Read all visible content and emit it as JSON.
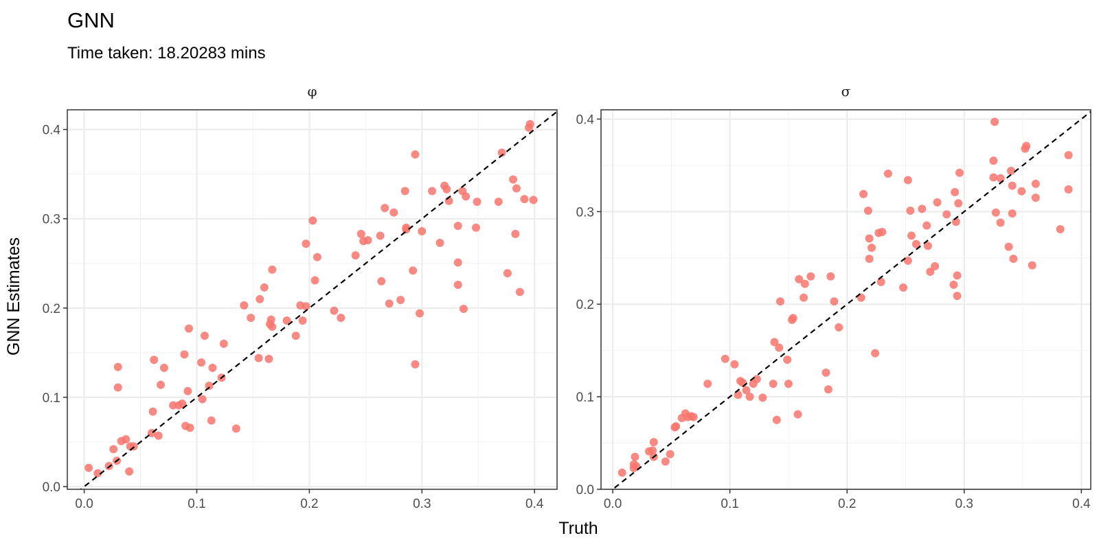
{
  "title": "GNN",
  "subtitle": "Time taken: 18.20283 mins",
  "colors": {
    "point": "#F8766D",
    "refline": "#000000"
  },
  "chart_data": [
    {
      "type": "scatter",
      "panel": "φ",
      "xlabel": "Truth",
      "ylabel": "GNN Estimates",
      "xlim": [
        -0.015,
        0.42
      ],
      "ylim": [
        -0.003,
        0.422
      ],
      "xticks": [
        0.0,
        0.1,
        0.2,
        0.3,
        0.4
      ],
      "xtick_labels": [
        "0.0",
        "0.1",
        "0.2",
        "0.3",
        "0.4"
      ],
      "yticks": [
        0.0,
        0.1,
        0.2,
        0.3,
        0.4
      ],
      "ytick_labels": [
        "0.0",
        "0.1",
        "0.2",
        "0.3",
        "0.4"
      ],
      "reference_line": "y = x",
      "points": [
        [
          0.004,
          0.021
        ],
        [
          0.012,
          0.015
        ],
        [
          0.022,
          0.023
        ],
        [
          0.026,
          0.042
        ],
        [
          0.029,
          0.029
        ],
        [
          0.03,
          0.111
        ],
        [
          0.03,
          0.134
        ],
        [
          0.033,
          0.051
        ],
        [
          0.037,
          0.053
        ],
        [
          0.04,
          0.017
        ],
        [
          0.041,
          0.045
        ],
        [
          0.044,
          0.045
        ],
        [
          0.06,
          0.06
        ],
        [
          0.061,
          0.084
        ],
        [
          0.062,
          0.142
        ],
        [
          0.066,
          0.057
        ],
        [
          0.068,
          0.114
        ],
        [
          0.071,
          0.133
        ],
        [
          0.079,
          0.091
        ],
        [
          0.084,
          0.091
        ],
        [
          0.087,
          0.093
        ],
        [
          0.089,
          0.148
        ],
        [
          0.09,
          0.068
        ],
        [
          0.092,
          0.107
        ],
        [
          0.093,
          0.177
        ],
        [
          0.094,
          0.066
        ],
        [
          0.104,
          0.139
        ],
        [
          0.105,
          0.098
        ],
        [
          0.107,
          0.169
        ],
        [
          0.111,
          0.113
        ],
        [
          0.113,
          0.074
        ],
        [
          0.114,
          0.133
        ],
        [
          0.122,
          0.122
        ],
        [
          0.124,
          0.16
        ],
        [
          0.135,
          0.065
        ],
        [
          0.142,
          0.203
        ],
        [
          0.148,
          0.189
        ],
        [
          0.155,
          0.144
        ],
        [
          0.156,
          0.21
        ],
        [
          0.16,
          0.223
        ],
        [
          0.164,
          0.143
        ],
        [
          0.165,
          0.182
        ],
        [
          0.166,
          0.187
        ],
        [
          0.167,
          0.243
        ],
        [
          0.167,
          0.179
        ],
        [
          0.18,
          0.186
        ],
        [
          0.188,
          0.169
        ],
        [
          0.192,
          0.203
        ],
        [
          0.194,
          0.186
        ],
        [
          0.197,
          0.272
        ],
        [
          0.197,
          0.202
        ],
        [
          0.203,
          0.298
        ],
        [
          0.205,
          0.231
        ],
        [
          0.207,
          0.257
        ],
        [
          0.222,
          0.197
        ],
        [
          0.228,
          0.189
        ],
        [
          0.241,
          0.259
        ],
        [
          0.246,
          0.283
        ],
        [
          0.248,
          0.275
        ],
        [
          0.252,
          0.276
        ],
        [
          0.263,
          0.281
        ],
        [
          0.264,
          0.23
        ],
        [
          0.267,
          0.312
        ],
        [
          0.271,
          0.205
        ],
        [
          0.275,
          0.307
        ],
        [
          0.281,
          0.209
        ],
        [
          0.285,
          0.331
        ],
        [
          0.286,
          0.288
        ],
        [
          0.286,
          0.29
        ],
        [
          0.292,
          0.242
        ],
        [
          0.294,
          0.372
        ],
        [
          0.294,
          0.137
        ],
        [
          0.298,
          0.194
        ],
        [
          0.3,
          0.286
        ],
        [
          0.309,
          0.331
        ],
        [
          0.316,
          0.273
        ],
        [
          0.32,
          0.337
        ],
        [
          0.322,
          0.333
        ],
        [
          0.324,
          0.32
        ],
        [
          0.332,
          0.292
        ],
        [
          0.332,
          0.251
        ],
        [
          0.332,
          0.226
        ],
        [
          0.336,
          0.331
        ],
        [
          0.337,
          0.199
        ],
        [
          0.339,
          0.325
        ],
        [
          0.348,
          0.29
        ],
        [
          0.349,
          0.319
        ],
        [
          0.368,
          0.319
        ],
        [
          0.371,
          0.374
        ],
        [
          0.376,
          0.239
        ],
        [
          0.381,
          0.344
        ],
        [
          0.383,
          0.283
        ],
        [
          0.384,
          0.334
        ],
        [
          0.387,
          0.218
        ],
        [
          0.391,
          0.322
        ],
        [
          0.395,
          0.402
        ],
        [
          0.396,
          0.406
        ],
        [
          0.399,
          0.321
        ]
      ]
    },
    {
      "type": "scatter",
      "panel": "σ",
      "xlabel": "Truth",
      "ylabel": "GNN Estimates",
      "xlim": [
        -0.01,
        0.408
      ],
      "ylim": [
        0.0,
        0.41
      ],
      "xticks": [
        0.0,
        0.1,
        0.2,
        0.3,
        0.4
      ],
      "xtick_labels": [
        "0.0",
        "0.1",
        "0.2",
        "0.3",
        "0.4"
      ],
      "yticks": [
        0.0,
        0.1,
        0.2,
        0.3,
        0.4
      ],
      "ytick_labels": [
        "0.0",
        "0.1",
        "0.2",
        "0.3",
        "0.4"
      ],
      "reference_line": "y = x",
      "points": [
        [
          0.008,
          0.018
        ],
        [
          0.018,
          0.023
        ],
        [
          0.018,
          0.027
        ],
        [
          0.019,
          0.035
        ],
        [
          0.02,
          0.025
        ],
        [
          0.031,
          0.041
        ],
        [
          0.034,
          0.042
        ],
        [
          0.035,
          0.051
        ],
        [
          0.035,
          0.035
        ],
        [
          0.045,
          0.03
        ],
        [
          0.049,
          0.038
        ],
        [
          0.053,
          0.067
        ],
        [
          0.054,
          0.068
        ],
        [
          0.059,
          0.077
        ],
        [
          0.062,
          0.082
        ],
        [
          0.064,
          0.078
        ],
        [
          0.067,
          0.079
        ],
        [
          0.069,
          0.078
        ],
        [
          0.081,
          0.114
        ],
        [
          0.096,
          0.141
        ],
        [
          0.104,
          0.135
        ],
        [
          0.107,
          0.102
        ],
        [
          0.109,
          0.117
        ],
        [
          0.111,
          0.115
        ],
        [
          0.114,
          0.107
        ],
        [
          0.117,
          0.1
        ],
        [
          0.12,
          0.114
        ],
        [
          0.123,
          0.119
        ],
        [
          0.128,
          0.099
        ],
        [
          0.137,
          0.114
        ],
        [
          0.138,
          0.159
        ],
        [
          0.14,
          0.075
        ],
        [
          0.142,
          0.153
        ],
        [
          0.143,
          0.203
        ],
        [
          0.149,
          0.14
        ],
        [
          0.15,
          0.114
        ],
        [
          0.153,
          0.183
        ],
        [
          0.154,
          0.185
        ],
        [
          0.158,
          0.081
        ],
        [
          0.159,
          0.227
        ],
        [
          0.163,
          0.207
        ],
        [
          0.164,
          0.222
        ],
        [
          0.169,
          0.23
        ],
        [
          0.182,
          0.126
        ],
        [
          0.184,
          0.108
        ],
        [
          0.186,
          0.23
        ],
        [
          0.189,
          0.203
        ],
        [
          0.193,
          0.175
        ],
        [
          0.212,
          0.207
        ],
        [
          0.214,
          0.319
        ],
        [
          0.218,
          0.301
        ],
        [
          0.219,
          0.271
        ],
        [
          0.219,
          0.249
        ],
        [
          0.221,
          0.261
        ],
        [
          0.224,
          0.147
        ],
        [
          0.227,
          0.277
        ],
        [
          0.229,
          0.224
        ],
        [
          0.23,
          0.278
        ],
        [
          0.235,
          0.341
        ],
        [
          0.248,
          0.218
        ],
        [
          0.252,
          0.334
        ],
        [
          0.252,
          0.247
        ],
        [
          0.254,
          0.301
        ],
        [
          0.255,
          0.274
        ],
        [
          0.259,
          0.265
        ],
        [
          0.264,
          0.303
        ],
        [
          0.268,
          0.285
        ],
        [
          0.269,
          0.263
        ],
        [
          0.271,
          0.235
        ],
        [
          0.275,
          0.241
        ],
        [
          0.277,
          0.31
        ],
        [
          0.285,
          0.297
        ],
        [
          0.291,
          0.221
        ],
        [
          0.292,
          0.321
        ],
        [
          0.293,
          0.289
        ],
        [
          0.294,
          0.209
        ],
        [
          0.294,
          0.231
        ],
        [
          0.295,
          0.309
        ],
        [
          0.296,
          0.342
        ],
        [
          0.325,
          0.355
        ],
        [
          0.325,
          0.337
        ],
        [
          0.326,
          0.397
        ],
        [
          0.327,
          0.299
        ],
        [
          0.331,
          0.288
        ],
        [
          0.331,
          0.336
        ],
        [
          0.338,
          0.262
        ],
        [
          0.34,
          0.344
        ],
        [
          0.341,
          0.328
        ],
        [
          0.341,
          0.298
        ],
        [
          0.342,
          0.249
        ],
        [
          0.349,
          0.322
        ],
        [
          0.352,
          0.368
        ],
        [
          0.353,
          0.371
        ],
        [
          0.358,
          0.242
        ],
        [
          0.361,
          0.315
        ],
        [
          0.361,
          0.33
        ],
        [
          0.382,
          0.281
        ],
        [
          0.389,
          0.361
        ],
        [
          0.389,
          0.324
        ]
      ]
    }
  ]
}
